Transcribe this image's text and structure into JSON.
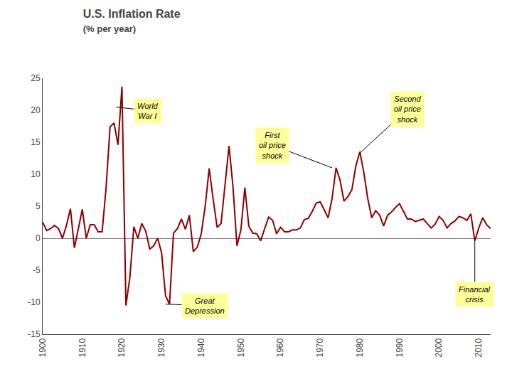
{
  "chart_data": {
    "type": "line",
    "title": "U.S. Inflation Rate",
    "subtitle": "(% per year)",
    "color": "#8B0000",
    "grid": false,
    "xlim": [
      1900,
      2013
    ],
    "ylim": [
      -15,
      25
    ],
    "xticks": [
      1900,
      1910,
      1920,
      1930,
      1940,
      1950,
      1960,
      1970,
      1980,
      1990,
      2000,
      2010
    ],
    "yticks": [
      -15,
      -10,
      -5,
      0,
      5,
      10,
      15,
      20,
      25
    ],
    "x": [
      1900,
      1901,
      1902,
      1903,
      1904,
      1905,
      1906,
      1907,
      1908,
      1909,
      1910,
      1911,
      1912,
      1913,
      1914,
      1915,
      1916,
      1917,
      1918,
      1919,
      1920,
      1921,
      1922,
      1923,
      1924,
      1925,
      1926,
      1927,
      1928,
      1929,
      1930,
      1931,
      1932,
      1933,
      1934,
      1935,
      1936,
      1937,
      1938,
      1939,
      1940,
      1941,
      1942,
      1943,
      1944,
      1945,
      1946,
      1947,
      1948,
      1949,
      1950,
      1951,
      1952,
      1953,
      1954,
      1955,
      1956,
      1957,
      1958,
      1959,
      1960,
      1961,
      1962,
      1963,
      1964,
      1965,
      1966,
      1967,
      1968,
      1969,
      1970,
      1971,
      1972,
      1973,
      1974,
      1975,
      1976,
      1977,
      1978,
      1979,
      1980,
      1981,
      1982,
      1983,
      1984,
      1985,
      1986,
      1987,
      1988,
      1989,
      1990,
      1991,
      1992,
      1993,
      1994,
      1995,
      1996,
      1997,
      1998,
      1999,
      2000,
      2001,
      2002,
      2003,
      2004,
      2005,
      2006,
      2007,
      2008,
      2009,
      2010,
      2011,
      2012,
      2013
    ],
    "values": [
      2.5,
      1.2,
      1.5,
      2.0,
      1.5,
      0.0,
      2.0,
      4.6,
      -1.5,
      1.5,
      4.5,
      0.0,
      2.1,
      2.1,
      1.0,
      1.0,
      7.9,
      17.4,
      18.0,
      14.6,
      23.7,
      -10.5,
      -6.1,
      1.8,
      0.0,
      2.3,
      1.1,
      -1.7,
      -1.2,
      0.0,
      -2.3,
      -9.0,
      -10.3,
      0.8,
      1.5,
      3.0,
      1.4,
      3.6,
      -2.1,
      -1.4,
      0.7,
      5.0,
      10.9,
      6.1,
      1.7,
      2.3,
      8.3,
      14.4,
      8.1,
      -1.2,
      1.3,
      7.9,
      1.9,
      0.8,
      0.7,
      -0.4,
      1.5,
      3.3,
      2.8,
      0.7,
      1.7,
      1.0,
      1.0,
      1.3,
      1.3,
      1.6,
      2.9,
      3.1,
      4.2,
      5.5,
      5.7,
      4.4,
      3.2,
      6.2,
      11.0,
      9.1,
      5.8,
      6.5,
      7.6,
      11.3,
      13.5,
      10.3,
      6.2,
      3.2,
      4.3,
      3.6,
      1.9,
      3.6,
      4.1,
      4.8,
      5.4,
      4.2,
      3.0,
      3.0,
      2.6,
      2.8,
      3.0,
      2.3,
      1.6,
      2.2,
      3.4,
      2.8,
      1.6,
      2.3,
      2.7,
      3.4,
      3.2,
      2.8,
      3.8,
      -0.4,
      1.6,
      3.2,
      2.1,
      1.5
    ],
    "annotations": [
      {
        "text": "World\nWar I",
        "x": 1918.5,
        "y": 20.5
      },
      {
        "text": "First\noil price\nshock",
        "x": 1973,
        "y": 11.0
      },
      {
        "text": "Second\noil price\nshock",
        "x": 1980.0,
        "y": 13.3
      },
      {
        "text": "Great\nDepression",
        "x": 1931,
        "y": -10.3
      },
      {
        "text": "Financial\ncrisis",
        "x": 2009,
        "y": -0.4
      }
    ]
  }
}
